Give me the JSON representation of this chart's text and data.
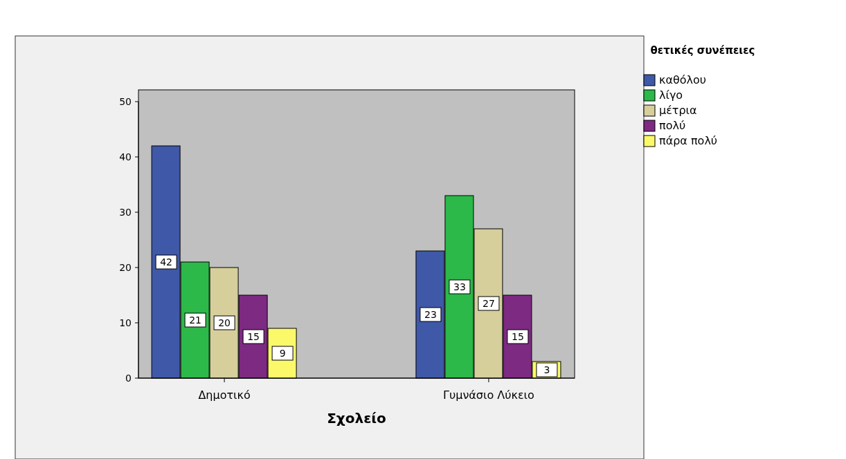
{
  "chart_data": {
    "type": "bar",
    "xlabel": "Σχολείο",
    "legend_title": "θετικές συνέπειες",
    "categories": [
      "Δημοτικό",
      "Γυμνάσιο Λύκειο"
    ],
    "series": [
      {
        "name": "καθόλου",
        "color": "#3f58a8",
        "values": [
          42,
          23
        ]
      },
      {
        "name": "λίγο",
        "color": "#2db84a",
        "values": [
          21,
          33
        ]
      },
      {
        "name": "μέτρια",
        "color": "#d6cf9c",
        "values": [
          20,
          27
        ]
      },
      {
        "name": "πολύ",
        "color": "#7d2a82",
        "values": [
          15,
          15
        ]
      },
      {
        "name": "πάρα πολύ",
        "color": "#fbf96a",
        "values": [
          9,
          3
        ]
      }
    ],
    "ylim": [
      0,
      50
    ],
    "yticks": [
      0,
      10,
      20,
      30,
      40,
      50
    ],
    "data_labels": true,
    "legend": "right",
    "grid": false
  }
}
